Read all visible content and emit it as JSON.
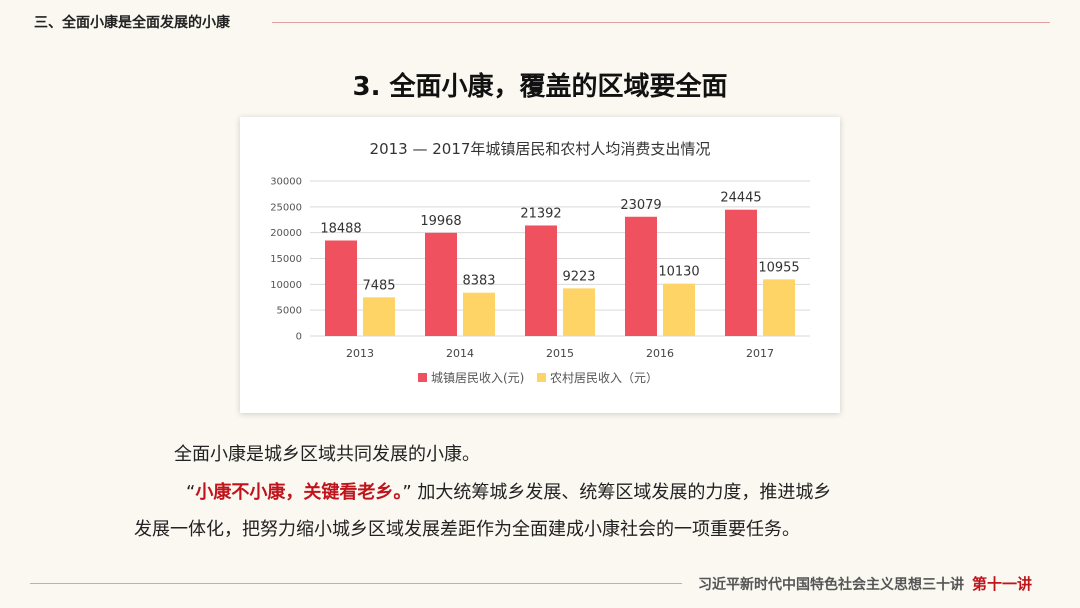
{
  "header": {
    "section_title": "三、全面小康是全面发展的小康",
    "slide_title": "3. 全面小康，覆盖的区域要全面"
  },
  "body": {
    "para1": "全面小康是城乡区域共同发展的小康。",
    "para2_quote_open": "“",
    "para2_emph": "小康不小康，关键看老乡。",
    "para2_quote_close": "”",
    "para2_rest": "加大统筹城乡发展、统筹区域发展的力度，推进城乡",
    "para3": "发展一体化，把努力缩小城乡区域发展差距作为全面建成小康社会的一项重要任务。"
  },
  "footer": {
    "series": "习近平新时代中国特色社会主义思想三十讲",
    "lecture": "第十一讲"
  },
  "colors": {
    "urban": "#f0515e",
    "rural": "#ffd466",
    "accent": "#c0141c"
  },
  "chart_data": {
    "type": "bar",
    "title": "2013 — 2017年城镇居民和农村人均消费支出情况",
    "categories": [
      "2013",
      "2014",
      "2015",
      "2016",
      "2017"
    ],
    "series": [
      {
        "name": "城镇居民收入(元)",
        "values": [
          18488,
          19968,
          21392,
          23079,
          24445
        ]
      },
      {
        "name": "农村居民收入（元）",
        "values": [
          7485,
          8383,
          9223,
          10130,
          10955
        ]
      }
    ],
    "yticks": [
      0,
      5000,
      10000,
      15000,
      20000,
      25000,
      30000
    ],
    "ylim": [
      0,
      30000
    ],
    "xlabel": "",
    "ylabel": "",
    "legend": "bottom"
  }
}
